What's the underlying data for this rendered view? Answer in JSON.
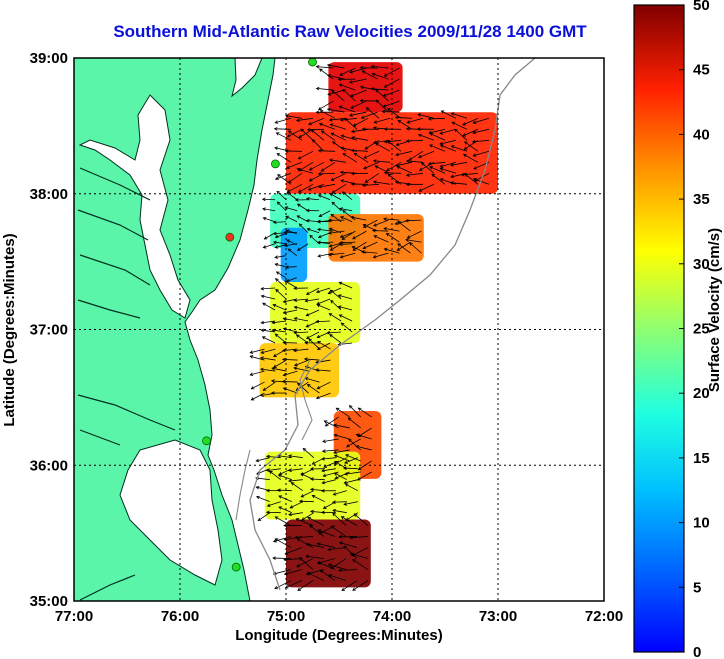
{
  "title": "Southern Mid-Atlantic Raw Velocities 2009/11/28 1400 GMT",
  "xlabel": "Longitude (Degrees:Minutes)",
  "ylabel": "Latitude (Degrees:Minutes)",
  "x_ticks": [
    "77:00",
    "76:00",
    "75:00",
    "74:00",
    "73:00",
    "72:00"
  ],
  "y_ticks": [
    "39:00",
    "38:00",
    "37:00",
    "36:00",
    "35:00"
  ],
  "colorbar": {
    "label": "Surface Velocity (cm/s)",
    "ticks": [
      "0",
      "5",
      "10",
      "15",
      "20",
      "25",
      "30",
      "35",
      "40",
      "45",
      "50"
    ],
    "min": 0,
    "max": 50
  },
  "colors": {
    "land": "#5af5a8",
    "title": "#0a10d8",
    "station_green": "#22dd22",
    "station_red": "#ee3322",
    "isobath": "#888888"
  },
  "map_extent": {
    "lon": [
      -77,
      -72
    ],
    "lat": [
      35,
      39
    ]
  },
  "chart_data": {
    "type": "heatmap",
    "title": "Southern Mid-Atlantic Raw Velocities 2009/11/28 1400 GMT",
    "xlabel": "Longitude (Degrees:Minutes)",
    "ylabel": "Latitude (Degrees:Minutes)",
    "xlim": [
      -77,
      -72
    ],
    "ylim": [
      35,
      39
    ],
    "color_scale": [
      0,
      50
    ],
    "color_label": "Surface Velocity (cm/s)",
    "grid": true,
    "stations": [
      {
        "lon": -74.75,
        "lat": 38.97,
        "color": "green"
      },
      {
        "lon": -75.1,
        "lat": 38.22,
        "color": "green"
      },
      {
        "lon": -75.53,
        "lat": 37.68,
        "color": "red"
      },
      {
        "lon": -75.75,
        "lat": 36.18,
        "color": "green"
      },
      {
        "lon": -75.47,
        "lat": 35.25,
        "color": "green"
      }
    ],
    "velocity_zones": [
      {
        "lon": [
          -74.6,
          -73.9
        ],
        "lat": [
          38.6,
          38.97
        ],
        "speed": 45
      },
      {
        "lon": [
          -75.0,
          -73.0
        ],
        "lat": [
          38.0,
          38.6
        ],
        "speed": 42
      },
      {
        "lon": [
          -75.15,
          -74.3
        ],
        "lat": [
          37.6,
          38.0
        ],
        "speed": 22
      },
      {
        "lon": [
          -75.05,
          -74.8
        ],
        "lat": [
          37.35,
          37.75
        ],
        "speed": 14
      },
      {
        "lon": [
          -74.6,
          -73.7
        ],
        "lat": [
          37.5,
          37.85
        ],
        "speed": 38
      },
      {
        "lon": [
          -75.15,
          -74.3
        ],
        "lat": [
          36.9,
          37.35
        ],
        "speed": 30
      },
      {
        "lon": [
          -75.25,
          -74.5
        ],
        "lat": [
          36.5,
          36.9
        ],
        "speed": 34
      },
      {
        "lon": [
          -74.55,
          -74.1
        ],
        "lat": [
          35.9,
          36.4
        ],
        "speed": 40
      },
      {
        "lon": [
          -75.2,
          -74.3
        ],
        "lat": [
          35.6,
          36.1
        ],
        "speed": 30
      },
      {
        "lon": [
          -75.0,
          -74.2
        ],
        "lat": [
          35.1,
          35.6
        ],
        "speed": 50
      }
    ]
  }
}
